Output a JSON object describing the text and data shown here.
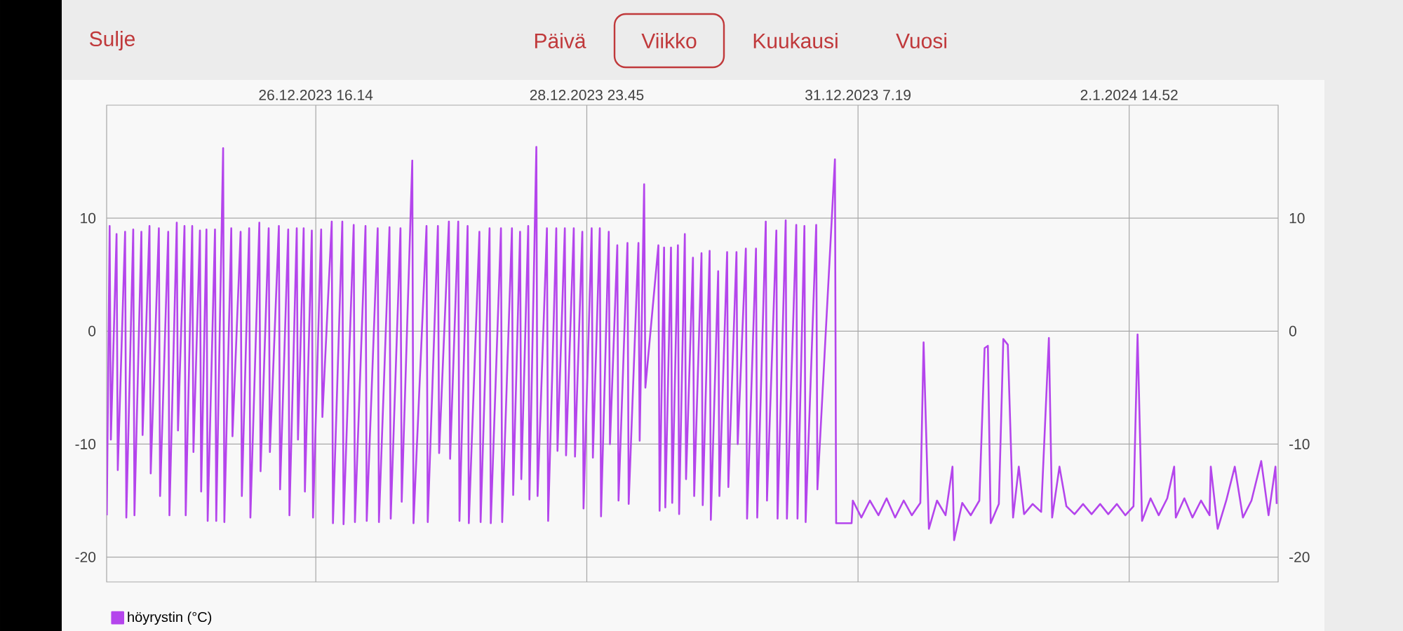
{
  "chart_data": {
    "type": "line",
    "annotations": [
      "Sulje",
      "Päivä",
      "Viikko",
      "Kuukausi",
      "Vuosi"
    ],
    "xlim": [
      "2023-12-24T21:23",
      "2024-01-03T21:23"
    ],
    "xticks": [
      {
        "value": "2023-12-26T16:14",
        "label": "26.12.2023 16.14"
      },
      {
        "value": "2023-12-28T23:45",
        "label": "28.12.2023 23.45"
      },
      {
        "value": "2023-12-31T07:19",
        "label": "31.12.2023 7.19"
      },
      {
        "value": "2024-01-02T14:52",
        "label": "2.1.2024 14.52"
      }
    ],
    "ylim": [
      -22.2,
      20
    ],
    "yticks": [
      -20,
      -10,
      0,
      10
    ],
    "y2lim": [
      -22.2,
      20
    ],
    "y2ticks": [
      -20,
      -10,
      0,
      10
    ],
    "grid": true,
    "legend": "bottom left",
    "marker": "none",
    "line_style": "solid",
    "series": [
      {
        "name": "höyrystin (°C)",
        "color": "#b445ec",
        "x": [
          "2023-12-24T21:25",
          "2023-12-24T22:00",
          "2023-12-24T22:15",
          "2023-12-24T23:25",
          "2023-12-24T23:40",
          "2023-12-25T01:10",
          "2023-12-25T01:25",
          "2023-12-25T02:50",
          "2023-12-25T03:05",
          "2023-12-25T04:30",
          "2023-12-25T04:45",
          "2023-12-25T06:10",
          "2023-12-25T06:25",
          "2023-12-25T08:05",
          "2023-12-25T08:20",
          "2023-12-25T10:00",
          "2023-12-25T10:15",
          "2023-12-25T11:45",
          "2023-12-25T12:00",
          "2023-12-25T13:20",
          "2023-12-25T13:35",
          "2023-12-25T14:55",
          "2023-12-25T15:10",
          "2023-12-25T16:30",
          "2023-12-25T16:45",
          "2023-12-25T17:50",
          "2023-12-25T18:05",
          "2023-12-25T19:35",
          "2023-12-25T19:50",
          "2023-12-25T21:15",
          "2023-12-25T21:30",
          "2023-12-25T22:55",
          "2023-12-25T23:10",
          "2023-12-26T00:50",
          "2023-12-26T01:05",
          "2023-12-26T02:35",
          "2023-12-26T02:50",
          "2023-12-26T04:40",
          "2023-12-26T04:55",
          "2023-12-26T06:35",
          "2023-12-26T06:50",
          "2023-12-26T08:40",
          "2023-12-26T08:55",
          "2023-12-26T10:35",
          "2023-12-26T10:50",
          "2023-12-26T12:20",
          "2023-12-26T12:35",
          "2023-12-26T13:45",
          "2023-12-26T14:00",
          "2023-12-26T15:25",
          "2023-12-26T15:40",
          "2023-12-26T17:20",
          "2023-12-26T17:35",
          "2023-12-26T19:30",
          "2023-12-26T19:45",
          "2023-12-26T21:40",
          "2023-12-26T21:55",
          "2023-12-27T00:00",
          "2023-12-27T00:15",
          "2023-12-27T02:25",
          "2023-12-27T02:40",
          "2023-12-27T04:55",
          "2023-12-27T05:10",
          "2023-12-27T07:20",
          "2023-12-27T07:35",
          "2023-12-27T09:35",
          "2023-12-27T09:50",
          "2023-12-27T12:00",
          "2023-12-27T12:15",
          "2023-12-27T14:55",
          "2023-12-27T15:10",
          "2023-12-27T17:15",
          "2023-12-27T17:30",
          "2023-12-27T19:30",
          "2023-12-27T19:45",
          "2023-12-27T21:25",
          "2023-12-27T21:40",
          "2023-12-27T23:20",
          "2023-12-27T23:35",
          "2023-12-28T01:45",
          "2023-12-28T02:00",
          "2023-12-28T03:50",
          "2023-12-28T04:05",
          "2023-12-28T06:10",
          "2023-12-28T06:25",
          "2023-12-28T08:25",
          "2023-12-28T08:40",
          "2023-12-28T10:05",
          "2023-12-28T10:20",
          "2023-12-28T11:45",
          "2023-12-28T12:00",
          "2023-12-28T13:25",
          "2023-12-28T13:40",
          "2023-12-28T15:35",
          "2023-12-28T15:50",
          "2023-12-28T17:30",
          "2023-12-28T17:45",
          "2023-12-28T19:15",
          "2023-12-28T19:30",
          "2023-12-28T21:05",
          "2023-12-28T21:20",
          "2023-12-28T22:50",
          "2023-12-28T23:05",
          "2023-12-29T00:45",
          "2023-12-29T01:00",
          "2023-12-29T02:25",
          "2023-12-29T02:40",
          "2023-12-29T04:15",
          "2023-12-29T04:30",
          "2023-12-29T06:00",
          "2023-12-29T06:15",
          "2023-12-29T08:05",
          "2023-12-29T08:20",
          "2023-12-29T10:20",
          "2023-12-29T10:35",
          "2023-12-29T11:30",
          "2023-12-29T11:45",
          "2023-12-29T14:25",
          "2023-12-29T14:40",
          "2023-12-29T15:35",
          "2023-12-29T15:50",
          "2023-12-29T17:00",
          "2023-12-29T17:15",
          "2023-12-29T18:25",
          "2023-12-29T18:40",
          "2023-12-29T19:50",
          "2023-12-29T20:05",
          "2023-12-29T21:30",
          "2023-12-29T21:45",
          "2023-12-29T23:15",
          "2023-12-29T23:30",
          "2023-12-30T00:55",
          "2023-12-30T01:10",
          "2023-12-30T02:40",
          "2023-12-30T02:55",
          "2023-12-30T04:30",
          "2023-12-30T04:45",
          "2023-12-30T06:25",
          "2023-12-30T06:40",
          "2023-12-30T08:20",
          "2023-12-30T08:35",
          "2023-12-30T10:25",
          "2023-12-30T10:40",
          "2023-12-30T12:25",
          "2023-12-30T12:40",
          "2023-12-30T14:35",
          "2023-12-30T14:50",
          "2023-12-30T16:30",
          "2023-12-30T16:45",
          "2023-12-30T18:40",
          "2023-12-30T18:55",
          "2023-12-30T20:20",
          "2023-12-30T20:35",
          "2023-12-30T22:45",
          "2023-12-30T23:00",
          "2023-12-31T02:35",
          "2023-12-31T02:50",
          "2023-12-31T06:00",
          "2023-12-31T06:15",
          "2023-12-31T08:00",
          "2023-12-31T09:45",
          "2023-12-31T11:30",
          "2023-12-31T13:10",
          "2023-12-31T14:55",
          "2023-12-31T16:40",
          "2023-12-31T18:20",
          "2023-12-31T20:05",
          "2023-12-31T20:45",
          "2023-12-31T21:50",
          "2023-12-31T23:30",
          "2024-01-01T01:15",
          "2024-01-01T02:40",
          "2024-01-01T03:00",
          "2024-01-01T04:40",
          "2024-01-01T06:25",
          "2024-01-01T08:10",
          "2024-01-01T09:15",
          "2024-01-01T09:55",
          "2024-01-01T10:30",
          "2024-01-01T12:10",
          "2024-01-01T13:05",
          "2024-01-01T14:00",
          "2024-01-01T15:05",
          "2024-01-01T16:15",
          "2024-01-01T17:20",
          "2024-01-01T19:05",
          "2024-01-01T20:50",
          "2024-01-01T22:25",
          "2024-01-01T23:05",
          "2024-01-02T00:35",
          "2024-01-02T02:00",
          "2024-01-02T03:40",
          "2024-01-02T05:25",
          "2024-01-02T07:10",
          "2024-01-02T08:55",
          "2024-01-02T10:35",
          "2024-01-02T12:20",
          "2024-01-02T14:05",
          "2024-01-02T15:45",
          "2024-01-02T16:35",
          "2024-01-02T17:30",
          "2024-01-02T19:15",
          "2024-01-02T20:55",
          "2024-01-02T22:40",
          "2024-01-03T00:05",
          "2024-01-03T00:25",
          "2024-01-03T02:10",
          "2024-01-03T03:50",
          "2024-01-03T05:35",
          "2024-01-03T07:20",
          "2024-01-03T07:35",
          "2024-01-03T09:00",
          "2024-01-03T10:45",
          "2024-01-03T12:30",
          "2024-01-03T14:10",
          "2024-01-03T15:55",
          "2024-01-03T17:55",
          "2024-01-03T19:25",
          "2024-01-03T20:50",
          "2024-01-03T21:05"
        ],
        "values": [
          -16.3,
          9.3,
          -9.6,
          8.6,
          -12.3,
          8.8,
          -16.5,
          9.0,
          -16.3,
          8.8,
          -9.2,
          9.3,
          -12.6,
          9.1,
          -14.6,
          8.8,
          -16.3,
          9.6,
          -8.8,
          9.3,
          -16.3,
          9.3,
          -10.7,
          8.9,
          -14.2,
          9.0,
          -16.8,
          9.0,
          -16.8,
          16.2,
          -16.9,
          9.1,
          -9.3,
          8.8,
          -14.6,
          9.1,
          -16.5,
          9.6,
          -12.4,
          9.1,
          -10.7,
          9.3,
          -14.0,
          9.0,
          -16.3,
          9.1,
          -9.6,
          9.1,
          -14.2,
          8.9,
          -16.5,
          9.0,
          -7.6,
          9.7,
          -17.0,
          9.7,
          -17.1,
          9.4,
          -16.9,
          9.3,
          -16.8,
          9.1,
          -16.9,
          9.2,
          -16.6,
          9.1,
          -15.1,
          15.1,
          -17.0,
          9.3,
          -16.9,
          9.3,
          -10.8,
          9.7,
          -11.3,
          9.7,
          -16.8,
          9.3,
          -17.0,
          8.8,
          -16.9,
          9.1,
          -17.0,
          9.1,
          -16.9,
          9.1,
          -14.5,
          8.8,
          -13.1,
          9.3,
          -14.9,
          16.3,
          -14.6,
          9.1,
          -16.8,
          9.1,
          -10.6,
          9.1,
          -11.0,
          9.1,
          -11.1,
          8.8,
          -15.7,
          9.1,
          -11.2,
          9.1,
          -16.4,
          8.8,
          -10.0,
          7.6,
          -15.0,
          7.8,
          -15.3,
          7.8,
          -9.7,
          13.0,
          -5.0,
          7.6,
          -15.9,
          7.4,
          -15.6,
          7.4,
          -15.2,
          7.6,
          -16.2,
          8.6,
          -13.1,
          6.5,
          -14.6,
          6.9,
          -15.4,
          7.1,
          -16.7,
          5.3,
          -14.6,
          7.0,
          -13.8,
          7.0,
          -10.0,
          7.3,
          -16.6,
          7.3,
          -16.5,
          9.7,
          -15.0,
          8.9,
          -16.6,
          9.8,
          -16.6,
          9.4,
          -16.6,
          9.3,
          -16.9,
          9.4,
          -14.0,
          15.2,
          -17.0,
          -17.0,
          -15.0,
          -16.5,
          -15.0,
          -16.3,
          -14.8,
          -16.5,
          -15.0,
          -16.3,
          -15.2,
          -1.0,
          -17.5,
          -15.0,
          -16.3,
          -12.0,
          -18.5,
          -15.2,
          -16.3,
          -15.0,
          -1.5,
          -1.3,
          -17.0,
          -15.3,
          -0.7,
          -1.2,
          -16.5,
          -12.0,
          -16.2,
          -15.3,
          -16.0,
          -0.6,
          -16.5,
          -12.0,
          -15.5,
          -16.2,
          -15.3,
          -16.2,
          -15.3,
          -16.2,
          -15.3,
          -16.3,
          -15.5,
          -0.3,
          -16.8,
          -14.8,
          -16.3,
          -14.8,
          -12.0,
          -16.5,
          -14.8,
          -16.5,
          -15.0,
          -16.3,
          -12.0,
          -17.5,
          -15.0,
          -12.0,
          -16.5,
          -15.0,
          -11.5,
          -16.3,
          -12.0,
          -15.3
        ]
      }
    ]
  }
}
